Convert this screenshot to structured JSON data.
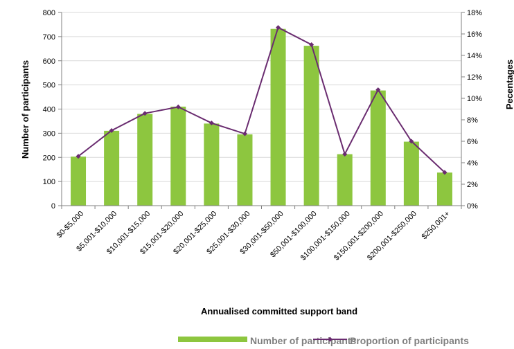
{
  "chart_data": {
    "type": "bar",
    "xlabel": "Annualised committed support band",
    "ylabel": "Number of participants",
    "y2label": "Pecentages",
    "ylim": [
      0,
      800
    ],
    "y2lim": [
      0,
      18
    ],
    "yticks": [
      "0",
      "100",
      "200",
      "300",
      "400",
      "500",
      "600",
      "700",
      "800"
    ],
    "y2ticks": [
      "0%",
      "2%",
      "4%",
      "6%",
      "8%",
      "10%",
      "12%",
      "14%",
      "16%",
      "18%"
    ],
    "grid": true,
    "legend_position": "bottom",
    "categories": [
      "$0-$5,000",
      "$5,001-$10,000",
      "$10,001-$15,000",
      "$15,001-$20,000",
      "$20,001-$25,000",
      "$25,001-$30,000",
      "$30,001-$50,000",
      "$50,001-$100,000",
      "$100,001-$150,000",
      "$150,001-$200,000",
      "$200,001-$250,000",
      "$250,001+"
    ],
    "series": [
      {
        "name": "Number of participants",
        "kind": "bar",
        "axis": "left",
        "color": "#8dc63f",
        "values": [
          203,
          310,
          380,
          410,
          340,
          295,
          732,
          662,
          213,
          477,
          265,
          137
        ]
      },
      {
        "name": "Proportion of participants",
        "kind": "line",
        "axis": "right",
        "color": "#6a2c70",
        "values": [
          4.6,
          7.0,
          8.6,
          9.2,
          7.7,
          6.7,
          16.6,
          15.0,
          4.8,
          10.8,
          6.0,
          3.1
        ]
      }
    ]
  }
}
